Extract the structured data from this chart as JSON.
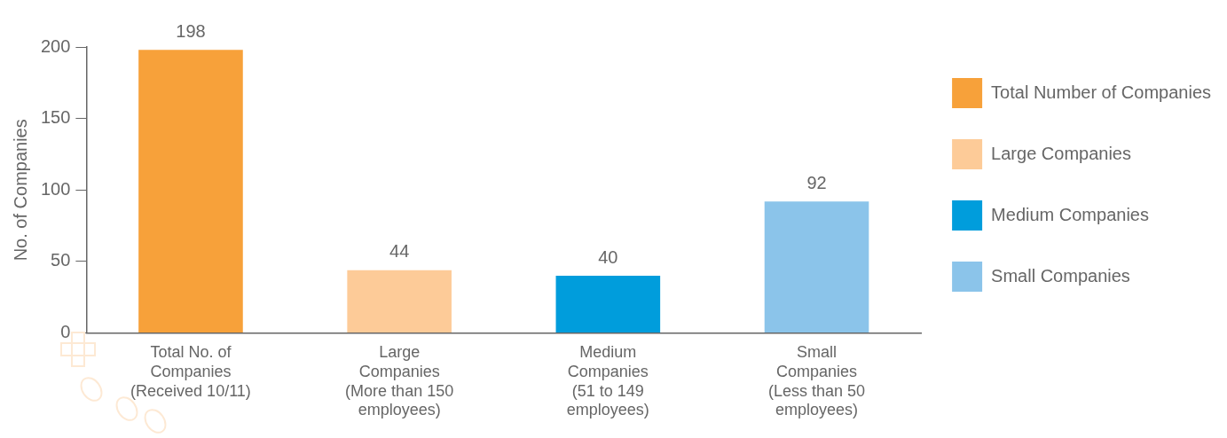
{
  "chart_data": {
    "type": "bar",
    "ylabel": "No. of Companies",
    "categories": [
      "Total No. of Companies (Received 10/11)",
      "Large Companies (More than 150 employees)",
      "Medium Companies (51 to 149 employees)",
      "Small Companies (Less than 50 employees)"
    ],
    "series": [
      {
        "name": "Total Number of Companies",
        "color": "#f7a13a",
        "values": [
          198,
          null,
          null,
          null
        ]
      },
      {
        "name": "Large Companies",
        "color": "#fdcb98",
        "values": [
          null,
          44,
          null,
          null
        ]
      },
      {
        "name": "Medium Companies",
        "color": "#009ddc",
        "values": [
          null,
          null,
          40,
          null
        ]
      },
      {
        "name": "Small Companies",
        "color": "#8bc4ea",
        "values": [
          null,
          null,
          null,
          92
        ]
      }
    ],
    "ylim": [
      0,
      200
    ],
    "yticks": [
      0,
      50,
      100,
      150,
      200
    ],
    "grid": false,
    "legend": "top right",
    "data_labels": true
  }
}
